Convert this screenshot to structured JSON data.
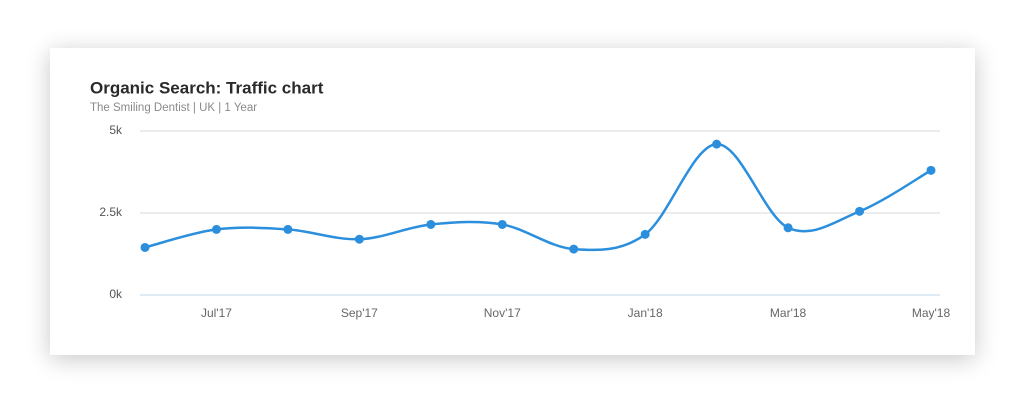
{
  "chart_data": {
    "type": "line",
    "title": "Organic Search: Traffic chart",
    "subtitle": "The Smiling Dentist | UK | 1 Year",
    "categories": [
      null,
      "Jul'17",
      null,
      "Sep'17",
      null,
      "Nov'17",
      null,
      "Jan'18",
      null,
      "Mar'18",
      null,
      "May'18"
    ],
    "series": [
      {
        "name": "Traffic",
        "color": "#2b8fdd",
        "values": [
          1450,
          2000,
          2000,
          1700,
          2150,
          2150,
          1400,
          1850,
          4600,
          2050,
          2550,
          3800
        ]
      }
    ],
    "ylim": [
      0,
      5000
    ],
    "yticks": [
      {
        "value": 0,
        "label": "0k"
      },
      {
        "value": 2500,
        "label": "2.5k"
      },
      {
        "value": 5000,
        "label": "5k"
      }
    ],
    "grid": true
  }
}
